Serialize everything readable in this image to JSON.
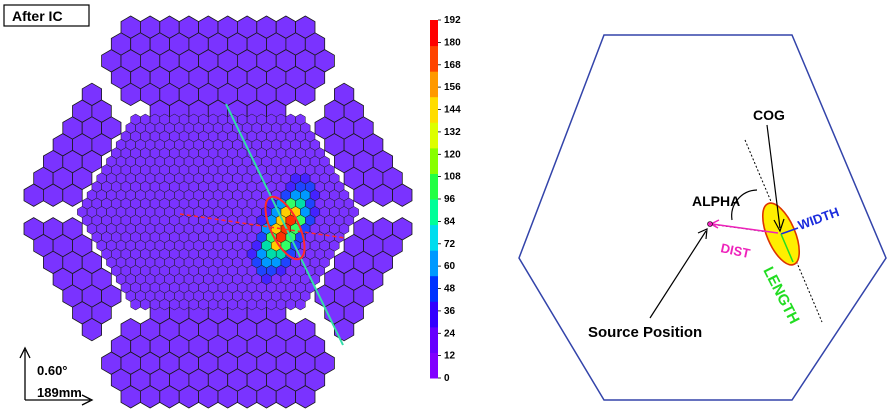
{
  "camera_panel": {
    "title": "After IC",
    "scale_bar": {
      "angle_label": "0.60°",
      "length_label": "189mm"
    },
    "colorbar": {
      "ticks": [
        "192",
        "180",
        "168",
        "156",
        "144",
        "132",
        "120",
        "108",
        "96",
        "84",
        "72",
        "60",
        "48",
        "36",
        "24",
        "12",
        "0"
      ],
      "colors": [
        "#8000ff",
        "#6600ff",
        "#3300ff",
        "#0033ff",
        "#0099ff",
        "#00ddee",
        "#00ff99",
        "#22ff44",
        "#88ff00",
        "#ddff00",
        "#ffdd00",
        "#ff9900",
        "#ff4400",
        "#ff0000"
      ]
    },
    "colors": {
      "background_pixel": "#7a33ff",
      "pixel_edge": "#1a1a1a",
      "gap": "#ffffff",
      "ellipse": "#ff2a2a",
      "major_axis": "#33ddaa",
      "alpha_line": "#ff2a2a"
    }
  },
  "diagram_panel": {
    "labels": {
      "cog": "COG",
      "alpha": "ALPHA",
      "width": "WIDTH",
      "dist": "DIST",
      "length": "LENGTH",
      "source_position": "Source Position"
    },
    "colors": {
      "hexagon": "#3344aa",
      "ellipse_fill": "#ffee00",
      "ellipse_stroke": "#dd3300",
      "width": "#1a2bdd",
      "dist": "#ee22bb",
      "length": "#22dd22",
      "text": "#000000"
    }
  }
}
